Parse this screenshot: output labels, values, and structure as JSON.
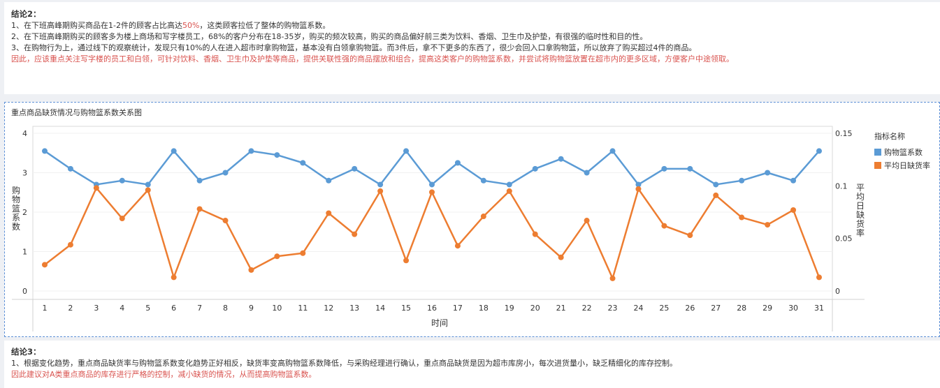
{
  "conclusion2": {
    "title": "结论2：",
    "line1_pre": "1、在下班高峰期购买商品在1-2件的顾客占比高达",
    "line1_pct": "50%",
    "line1_post": "，这类顾客拉低了整体的购物篮系数。",
    "line2": "2、在下班高峰期购买的顾客多为楼上商场和写字楼员工，68%的客户分布在18-35岁，购买的频次较高，购买的商品偏好前三类为饮料、香烟、卫生巾及护垫，有很强的临时性和目的性。",
    "line3": "3、在购物行为上，通过线下的观察统计，发现只有10%的人在进入超市时拿购物篮，基本没有白领拿购物篮。而3件后，拿不下更多的东西了，很少会回入口拿购物篮，所以放弃了购买超过4件的商品。",
    "line4": "因此，应该重点关注写字楼的员工和白领，可针对饮料、香烟、卫生巾及护垫等商品，提供关联性强的商品摆放和组合，提高这类客户的购物篮系数，并尝试将购物篮放置在超市内的更多区域，方便客户中途领取。"
  },
  "chart_title": "重点商品缺货情况与购物篮系数关系图",
  "legend": {
    "title": "指标名称",
    "items": [
      {
        "label": "购物篮系数",
        "color": "#5b9bd5"
      },
      {
        "label": "平均日缺货率",
        "color": "#ed7d31"
      }
    ]
  },
  "chart_data": {
    "type": "line",
    "xlabel": "时间",
    "ylabel_left": "购物篮系数",
    "ylabel_right": "平均日缺货率",
    "x": [
      1,
      2,
      3,
      4,
      5,
      6,
      7,
      8,
      9,
      10,
      11,
      12,
      13,
      14,
      15,
      16,
      17,
      18,
      19,
      20,
      21,
      22,
      23,
      24,
      25,
      26,
      27,
      28,
      29,
      30,
      31
    ],
    "y_left_ticks": [
      "0",
      "1",
      "2",
      "3",
      "4"
    ],
    "y_right_ticks": [
      "0",
      "0.05",
      "0.1",
      "0.15"
    ],
    "ylim_left": [
      0,
      4
    ],
    "ylim_right": [
      0,
      0.15
    ],
    "grid": true,
    "legend_position": "right",
    "series": [
      {
        "name": "购物篮系数",
        "axis": "left",
        "color": "#5b9bd5",
        "values": [
          3.55,
          3.1,
          2.7,
          2.8,
          2.7,
          3.55,
          2.8,
          3.0,
          3.55,
          3.45,
          3.25,
          2.8,
          3.1,
          2.7,
          3.55,
          2.7,
          3.25,
          2.8,
          2.7,
          3.1,
          3.35,
          3.0,
          3.55,
          2.7,
          3.1,
          3.1,
          2.7,
          2.8,
          3.0,
          2.8,
          3.55
        ]
      },
      {
        "name": "平均日缺货率",
        "axis": "right",
        "color": "#ed7d31",
        "values": [
          0.025,
          0.044,
          0.098,
          0.069,
          0.096,
          0.013,
          0.078,
          0.067,
          0.02,
          0.033,
          0.036,
          0.074,
          0.054,
          0.095,
          0.029,
          0.094,
          0.043,
          0.071,
          0.095,
          0.054,
          0.032,
          0.067,
          0.012,
          0.097,
          0.062,
          0.053,
          0.091,
          0.07,
          0.063,
          0.077,
          0.013
        ]
      }
    ]
  },
  "conclusion3": {
    "title": "结论3：",
    "line1": "1、根据变化趋势，重点商品缺货率与购物篮系数变化趋势正好相反，缺货率变高购物篮系数降低，与采购经理进行确认，重点商品缺货是因为超市库房小，每次进货量小，缺乏精细化的库存控制。",
    "line2": "因此建议对A类重点商品的库存进行严格的控制，减小缺货的情况，从而提高购物篮系数。"
  }
}
